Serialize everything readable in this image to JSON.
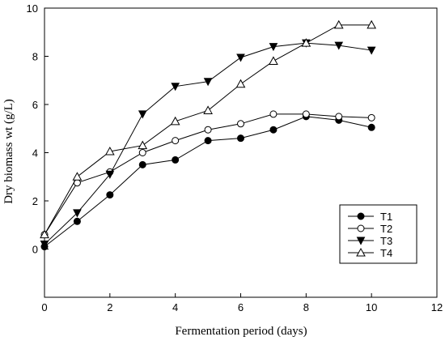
{
  "chart_data": {
    "type": "line",
    "title": "",
    "xlabel": "Fermentation period (days)",
    "ylabel": "Dry biomass wt (g/L)",
    "xlim": [
      0,
      12
    ],
    "ylim": [
      -2,
      10
    ],
    "xticks": [
      0,
      2,
      4,
      6,
      8,
      10,
      12
    ],
    "yticks": [
      0,
      2,
      4,
      6,
      8,
      10
    ],
    "grid": false,
    "legend_position": "bottom-right",
    "x": [
      0,
      1,
      2,
      3,
      4,
      5,
      6,
      7,
      8,
      9,
      10
    ],
    "series": [
      {
        "name": "T1",
        "marker": "filled-circle",
        "values": [
          0.1,
          1.15,
          2.25,
          3.5,
          3.7,
          4.5,
          4.6,
          4.95,
          5.5,
          5.35,
          5.05
        ]
      },
      {
        "name": "T2",
        "marker": "open-circle",
        "values": [
          0.6,
          2.75,
          3.2,
          4.0,
          4.5,
          4.95,
          5.2,
          5.6,
          5.6,
          5.5,
          5.45
        ]
      },
      {
        "name": "T3",
        "marker": "filled-triangle-down",
        "values": [
          0.2,
          1.5,
          3.1,
          5.6,
          6.75,
          6.95,
          7.95,
          8.4,
          8.55,
          8.45,
          8.25
        ]
      },
      {
        "name": "T4",
        "marker": "open-triangle-up",
        "values": [
          0.6,
          3.0,
          4.05,
          4.3,
          5.3,
          5.75,
          6.85,
          7.8,
          8.55,
          9.3,
          9.3
        ]
      }
    ]
  }
}
